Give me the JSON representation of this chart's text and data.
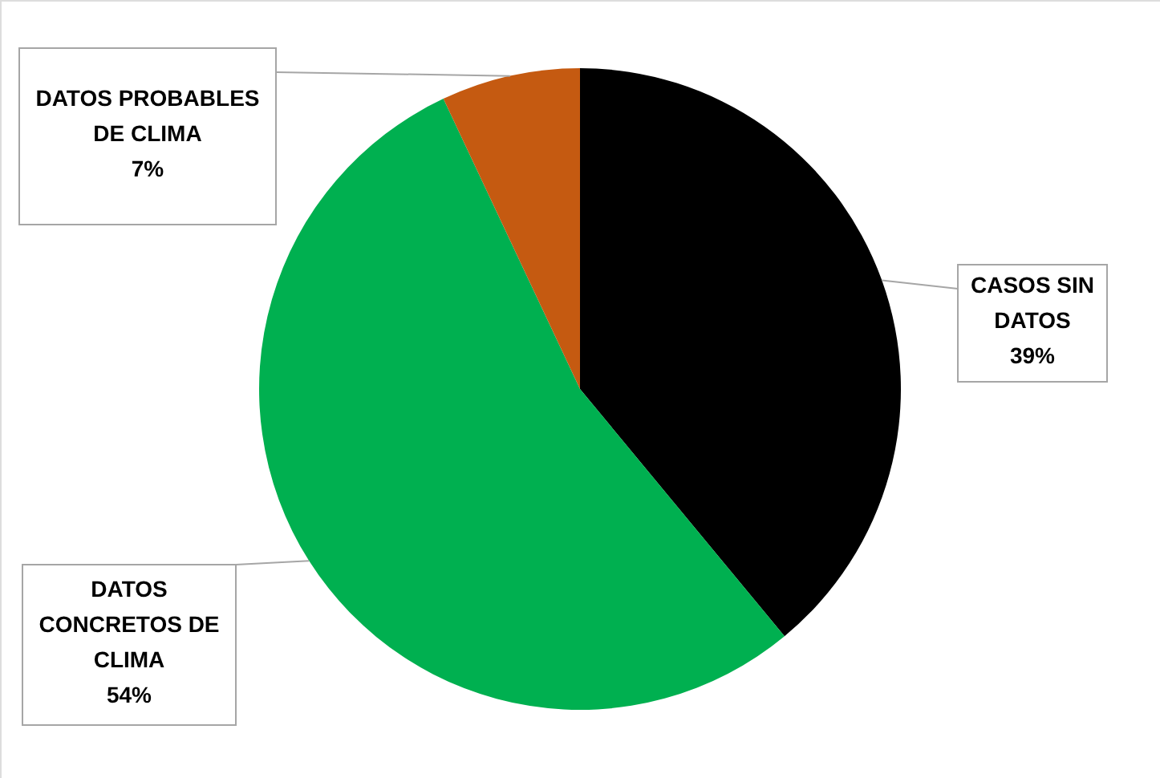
{
  "chart_data": {
    "type": "pie",
    "categories": [
      "CASOS SIN DATOS",
      "DATOS CONCRETOS DE CLIMA",
      "DATOS PROBABLES DE CLIMA"
    ],
    "values": [
      39,
      54,
      7
    ],
    "value_labels": [
      "39%",
      "54%",
      "7%"
    ],
    "colors": [
      "#000000",
      "#00b050",
      "#c55a11"
    ]
  }
}
